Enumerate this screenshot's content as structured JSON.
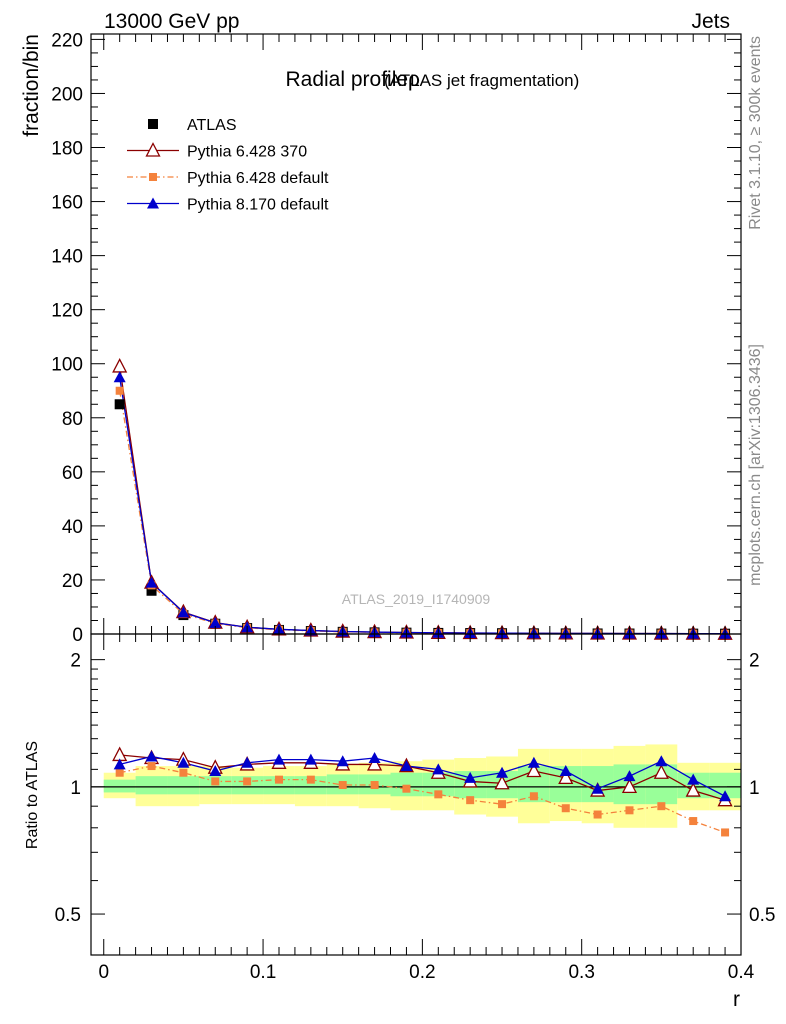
{
  "header": {
    "left": "13000 GeV pp",
    "right": "Jets"
  },
  "side_labels": {
    "top": "Rivet 3.1.10, ≥ 300k events",
    "bottom": "mcplots.cern.ch [arXiv:1306.3436]"
  },
  "chart_data": [
    {
      "type": "line",
      "title": "Radial profileρ",
      "subtitle": "(ATLAS jet fragmentation)",
      "watermark": "ATLAS_2019_I1740909",
      "ylabel": "fraction/bin",
      "xlim": [
        -0.008,
        0.4
      ],
      "ylim": [
        0,
        222
      ],
      "yticks": [
        0,
        20,
        40,
        60,
        80,
        100,
        120,
        140,
        160,
        180,
        200,
        220
      ],
      "legend_position": "top-left",
      "x": [
        0.01,
        0.03,
        0.05,
        0.07,
        0.09,
        0.11,
        0.13,
        0.15,
        0.17,
        0.19,
        0.21,
        0.23,
        0.25,
        0.27,
        0.29,
        0.31,
        0.33,
        0.35,
        0.37,
        0.39
      ],
      "series": [
        {
          "name": "ATLAS",
          "color": "#000000",
          "marker": "square",
          "values": [
            85,
            16,
            7,
            3.8,
            2.2,
            1.5,
            1.1,
            0.8,
            0.6,
            0.5,
            0.4,
            0.35,
            0.3,
            0.25,
            0.22,
            0.2,
            0.18,
            0.16,
            0.14,
            0.12
          ]
        },
        {
          "name": "Pythia 6.428 370",
          "color": "#8b0000",
          "marker": "triangle-open",
          "values": [
            99,
            19,
            8.1,
            4.2,
            2.5,
            1.7,
            1.3,
            0.9,
            0.7,
            0.55,
            0.44,
            0.36,
            0.31,
            0.27,
            0.23,
            0.2,
            0.18,
            0.17,
            0.14,
            0.11
          ]
        },
        {
          "name": "Pythia 6.428 default",
          "color": "#f4823c",
          "marker": "square-small",
          "dashed": true,
          "values": [
            90,
            18,
            7.5,
            3.9,
            2.3,
            1.56,
            1.14,
            0.81,
            0.61,
            0.49,
            0.38,
            0.32,
            0.27,
            0.23,
            0.2,
            0.17,
            0.16,
            0.15,
            0.12,
            0.09
          ]
        },
        {
          "name": "Pythia 8.170 default",
          "color": "#0000cc",
          "marker": "triangle",
          "values": [
            95,
            19,
            8,
            4.1,
            2.5,
            1.74,
            1.28,
            0.92,
            0.71,
            0.56,
            0.45,
            0.36,
            0.32,
            0.28,
            0.24,
            0.2,
            0.19,
            0.18,
            0.15,
            0.11
          ]
        }
      ]
    },
    {
      "type": "line",
      "ylabel": "Ratio to ATLAS",
      "xlabel": "r",
      "ylog": true,
      "xlim": [
        -0.008,
        0.4
      ],
      "ylim": [
        0.4,
        2.3
      ],
      "yticks": [
        0.5,
        1,
        2
      ],
      "xticks": [
        0,
        0.1,
        0.2,
        0.3,
        0.4
      ],
      "reference_line": 1,
      "x": [
        0.01,
        0.03,
        0.05,
        0.07,
        0.09,
        0.11,
        0.13,
        0.15,
        0.17,
        0.19,
        0.21,
        0.23,
        0.25,
        0.27,
        0.29,
        0.31,
        0.33,
        0.35,
        0.37,
        0.39
      ],
      "bands": {
        "yellow_color": "#ffff99",
        "green_color": "#99ff99",
        "yellow_low": [
          0.94,
          0.9,
          0.9,
          0.91,
          0.91,
          0.91,
          0.9,
          0.9,
          0.89,
          0.88,
          0.88,
          0.86,
          0.85,
          0.82,
          0.83,
          0.82,
          0.8,
          0.8,
          0.88,
          0.88
        ],
        "yellow_high": [
          1.08,
          1.12,
          1.12,
          1.12,
          1.11,
          1.12,
          1.12,
          1.13,
          1.14,
          1.15,
          1.16,
          1.17,
          1.18,
          1.23,
          1.23,
          1.23,
          1.25,
          1.26,
          1.14,
          1.14
        ],
        "green_low": [
          0.97,
          0.96,
          0.96,
          0.96,
          0.96,
          0.96,
          0.96,
          0.96,
          0.96,
          0.95,
          0.95,
          0.94,
          0.94,
          0.92,
          0.92,
          0.92,
          0.91,
          0.91,
          0.94,
          0.94
        ],
        "green_high": [
          1.04,
          1.06,
          1.06,
          1.06,
          1.06,
          1.06,
          1.06,
          1.07,
          1.07,
          1.08,
          1.08,
          1.09,
          1.09,
          1.12,
          1.12,
          1.12,
          1.13,
          1.13,
          1.08,
          1.08
        ]
      },
      "series": [
        {
          "name": "Pythia 6.428 370",
          "color": "#8b0000",
          "marker": "triangle-open",
          "values": [
            1.19,
            1.17,
            1.16,
            1.11,
            1.13,
            1.14,
            1.14,
            1.13,
            1.13,
            1.12,
            1.08,
            1.03,
            1.02,
            1.09,
            1.05,
            0.98,
            1.0,
            1.08,
            0.98,
            0.93
          ]
        },
        {
          "name": "Pythia 6.428 default",
          "color": "#f4823c",
          "marker": "square-small",
          "dashed": true,
          "values": [
            1.08,
            1.12,
            1.08,
            1.03,
            1.03,
            1.04,
            1.04,
            1.01,
            1.01,
            0.99,
            0.96,
            0.93,
            0.91,
            0.95,
            0.89,
            0.86,
            0.88,
            0.9,
            0.83,
            0.78
          ]
        },
        {
          "name": "Pythia 8.170 default",
          "color": "#0000cc",
          "marker": "triangle",
          "values": [
            1.13,
            1.18,
            1.14,
            1.09,
            1.14,
            1.16,
            1.16,
            1.15,
            1.17,
            1.12,
            1.1,
            1.05,
            1.08,
            1.14,
            1.09,
            0.99,
            1.06,
            1.15,
            1.04,
            0.95
          ]
        }
      ]
    }
  ]
}
